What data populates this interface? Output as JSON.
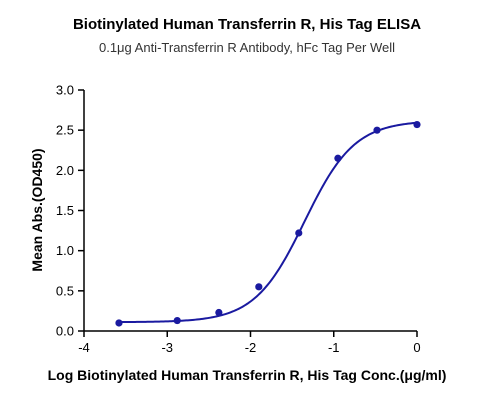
{
  "chart_data": {
    "type": "scatter",
    "title": "Biotinylated Human Transferrin R, His Tag ELISA",
    "subtitle": "0.1μg Anti-Transferrin R Antibody, hFc Tag Per Well",
    "xlabel": "Log Biotinylated Human Transferrin R, His Tag Conc.(μg/ml)",
    "ylabel": "Mean Abs.(OD450)",
    "xlim": [
      -4,
      0
    ],
    "ylim": [
      0,
      3.0
    ],
    "xticks": [
      "-4",
      "-3",
      "-2",
      "-1",
      "0"
    ],
    "yticks": [
      "0.0",
      "0.5",
      "1.0",
      "1.5",
      "2.0",
      "2.5",
      "3.0"
    ],
    "grid": false,
    "series_color": "#1a1aa0",
    "fit": "four-parameter logistic",
    "points": [
      {
        "x": -3.58,
        "y": 0.1
      },
      {
        "x": -2.88,
        "y": 0.13
      },
      {
        "x": -2.38,
        "y": 0.23
      },
      {
        "x": -1.9,
        "y": 0.55
      },
      {
        "x": -1.42,
        "y": 1.22
      },
      {
        "x": -0.95,
        "y": 2.15
      },
      {
        "x": -0.48,
        "y": 2.5
      },
      {
        "x": 0.0,
        "y": 2.57
      }
    ]
  }
}
